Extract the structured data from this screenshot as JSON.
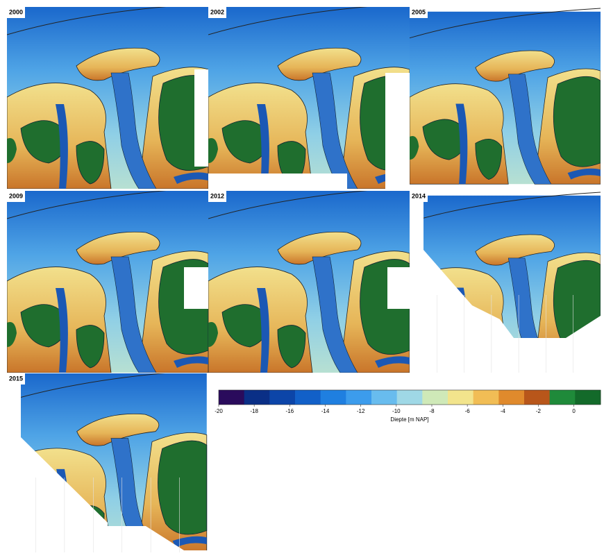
{
  "panels": [
    {
      "label": "2000"
    },
    {
      "label": "2002"
    },
    {
      "label": "2005"
    },
    {
      "label": "2009"
    },
    {
      "label": "2012"
    },
    {
      "label": "2014"
    },
    {
      "label": "2015"
    }
  ],
  "colorbar": {
    "label": "Diepte [m NAP]",
    "lim": [
      -20,
      1.5
    ],
    "ticks": [
      -20,
      -18,
      -16,
      -14,
      -12,
      -10,
      -8,
      -6,
      -4,
      -2,
      0
    ],
    "colors": [
      "#2a0b5c",
      "#0a2f86",
      "#0c45a8",
      "#1260c8",
      "#1f7fe0",
      "#3c9cec",
      "#68bcee",
      "#9fd8e6",
      "#cfe9b8",
      "#f2e48c",
      "#f1bd55",
      "#e08a2c",
      "#b8561a",
      "#1f8a3a",
      "#136a2a"
    ]
  }
}
